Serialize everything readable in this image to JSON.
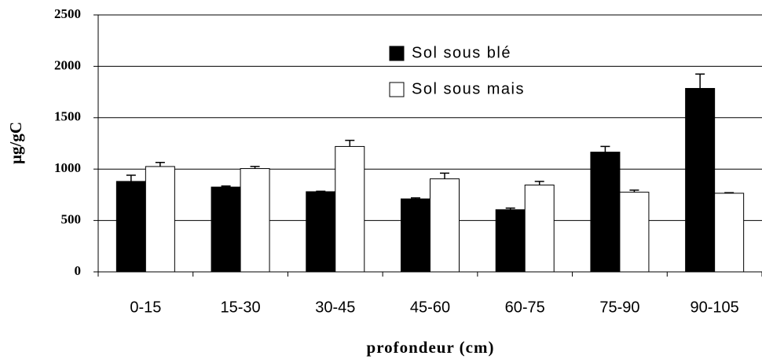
{
  "chart_data": {
    "type": "bar",
    "xlabel": "profondeur (cm)",
    "ylabel": "µg/gC",
    "categories": [
      "0-15",
      "15-30",
      "30-45",
      "45-60",
      "60-75",
      "75-90",
      "90-105"
    ],
    "series": [
      {
        "name": "Sol sous blé",
        "color": "#000000",
        "values": [
          880,
          825,
          780,
          710,
          605,
          1165,
          1785
        ],
        "errors": [
          60,
          10,
          5,
          10,
          15,
          55,
          140
        ]
      },
      {
        "name": "Sol sous mais",
        "color": "#ffffff",
        "values": [
          1025,
          1005,
          1220,
          905,
          845,
          775,
          765
        ],
        "errors": [
          40,
          20,
          60,
          55,
          35,
          20,
          5
        ]
      }
    ],
    "ylim": [
      0,
      2500
    ],
    "yticks": [
      0,
      500,
      1000,
      1500,
      2000,
      2500
    ],
    "grid": true,
    "legend": "top"
  }
}
